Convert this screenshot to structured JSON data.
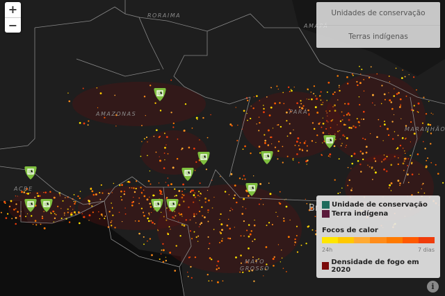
{
  "map": {
    "state_labels": [
      {
        "text": "RORAIMA"
      },
      {
        "text": "AMAPÁ"
      },
      {
        "text": "AMAZONAS"
      },
      {
        "text": "PARÁ"
      },
      {
        "text": "MARANHÃO"
      },
      {
        "text": "ACRE"
      },
      {
        "text": "MATO\nGROSSO"
      },
      {
        "text": "Br"
      }
    ],
    "marker_icon": "conservation-unit-marker-icon",
    "marker_color": "#7fbf3f",
    "marker_count": 11
  },
  "zoom": {
    "in": "+",
    "out": "−"
  },
  "layers": {
    "items": [
      "Unidades de conservação",
      "Terras indígenas"
    ]
  },
  "legend": {
    "items": [
      {
        "label": "Unidade de conservação",
        "color": "#1e6b5b"
      },
      {
        "label": "Terra indígena",
        "color": "#5a1a3a"
      }
    ],
    "fire_title": "Focos de calor",
    "fire_scale": [
      "#ffe600",
      "#ffc800",
      "#ffaa33",
      "#ff8c1a",
      "#ff7a00",
      "#ff5a00",
      "#f03c0a"
    ],
    "fire_start": "24h",
    "fire_end": "7 dias",
    "density_label": "Densidade de fogo em 2020",
    "density_color": "#7a0a0a"
  },
  "info_icon": "i"
}
